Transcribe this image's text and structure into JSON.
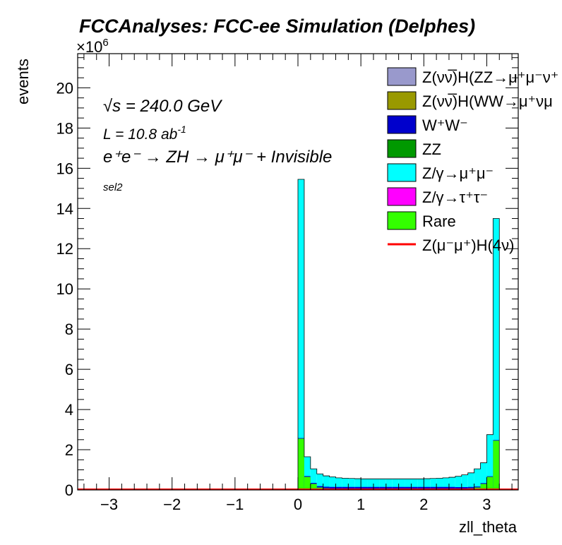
{
  "chart_data": {
    "type": "bar",
    "title": "FCCAnalyses: FCC-ee Simulation (Delphes)",
    "xlabel": "zll_theta",
    "ylabel": "events",
    "y_multiplier": "×10",
    "y_multiplier_exp": "6",
    "xlim": [
      -3.5,
      3.5
    ],
    "ylim": [
      0,
      21.7
    ],
    "x_ticks": [
      "−3",
      "−2",
      "−1",
      "0",
      "1",
      "2",
      "3"
    ],
    "y_ticks": [
      "0",
      "2",
      "4",
      "6",
      "8",
      "10",
      "12",
      "14",
      "16",
      "18",
      "20"
    ],
    "grid": false,
    "legend_position": "top-right",
    "annotations": {
      "energy": "√s = 240.0 GeV",
      "lumi_base": "L = 10.8 ab",
      "lumi_exp": "-1",
      "process": "e⁺e⁻ → ZH → μ⁺μ⁻ + Invisible",
      "selection": "sel2"
    },
    "legend": [
      {
        "label": "Z(νν̅)H(ZZ→μ⁺μ⁻ν⁺",
        "color": "#9999cc",
        "kind": "box"
      },
      {
        "label": "Z(νν̅)H(WW→μ⁺νμ",
        "color": "#999900",
        "kind": "box"
      },
      {
        "label": "W⁺W⁻",
        "color": "#0000cc",
        "kind": "box"
      },
      {
        "label": "ZZ",
        "color": "#009900",
        "kind": "box"
      },
      {
        "label": "Z/γ→μ⁺μ⁻",
        "color": "#00ffff",
        "kind": "box"
      },
      {
        "label": "Z/γ→τ⁺τ⁻",
        "color": "#ff00ff",
        "kind": "box"
      },
      {
        "label": "Rare",
        "color": "#33ff00",
        "kind": "box"
      },
      {
        "label": "Z(μ⁻μ⁺)H(4ν)",
        "color": "#ff0000",
        "kind": "line"
      }
    ],
    "bins": {
      "x_start": 0.0,
      "width": 0.1,
      "total": [
        15.45,
        1.65,
        1.05,
        0.8,
        0.7,
        0.65,
        0.6,
        0.58,
        0.57,
        0.56,
        0.55,
        0.55,
        0.55,
        0.55,
        0.55,
        0.55,
        0.55,
        0.55,
        0.55,
        0.55,
        0.56,
        0.57,
        0.58,
        0.6,
        0.63,
        0.68,
        0.75,
        0.85,
        1.05,
        1.35,
        2.75,
        13.5
      ],
      "green": [
        2.55,
        0.65,
        0.3,
        0.12,
        0.08,
        0.06,
        0.05,
        0.05,
        0.05,
        0.05,
        0.05,
        0.05,
        0.05,
        0.05,
        0.05,
        0.05,
        0.05,
        0.05,
        0.05,
        0.05,
        0.05,
        0.05,
        0.05,
        0.05,
        0.05,
        0.05,
        0.06,
        0.08,
        0.12,
        0.3,
        0.65,
        2.45
      ],
      "blue": [
        0.03,
        0.04,
        0.05,
        0.07,
        0.08,
        0.09,
        0.1,
        0.1,
        0.1,
        0.1,
        0.1,
        0.1,
        0.1,
        0.1,
        0.1,
        0.1,
        0.1,
        0.1,
        0.1,
        0.1,
        0.1,
        0.1,
        0.1,
        0.1,
        0.1,
        0.09,
        0.08,
        0.07,
        0.05,
        0.04,
        0.03,
        0.03
      ]
    }
  }
}
